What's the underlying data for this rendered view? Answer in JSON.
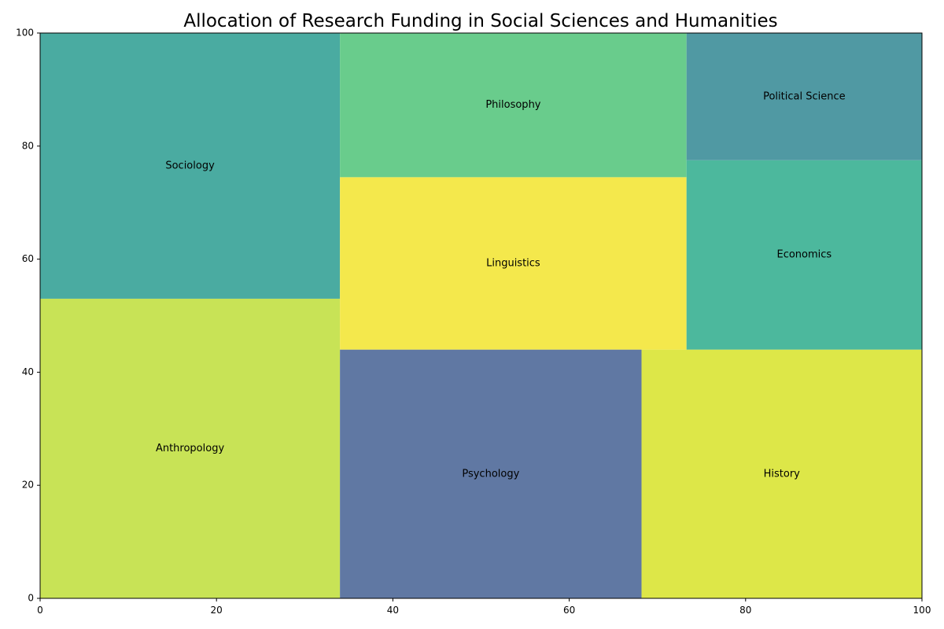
{
  "chart_data": {
    "type": "treemap",
    "title": "Allocation of Research Funding in Social Sciences and Humanities",
    "xlim": [
      0,
      100
    ],
    "ylim": [
      0,
      100
    ],
    "xticks": [
      0,
      20,
      40,
      60,
      80,
      100
    ],
    "yticks": [
      0,
      20,
      40,
      60,
      80,
      100
    ],
    "grid": false,
    "rects": [
      {
        "label": "Anthropology",
        "x": 0,
        "y": 0,
        "w": 34,
        "h": 53,
        "color": "#c8e356"
      },
      {
        "label": "Sociology",
        "x": 0,
        "y": 53,
        "w": 34,
        "h": 47,
        "color": "#4aaba1"
      },
      {
        "label": "Psychology",
        "x": 34,
        "y": 0,
        "w": 34.2,
        "h": 44,
        "color": "#6078a3"
      },
      {
        "label": "History",
        "x": 68.2,
        "y": 0,
        "w": 31.8,
        "h": 44,
        "color": "#dde748"
      },
      {
        "label": "Linguistics",
        "x": 34,
        "y": 44,
        "w": 39.3,
        "h": 30.5,
        "color": "#f4e84c"
      },
      {
        "label": "Philosophy",
        "x": 34,
        "y": 74.5,
        "w": 39.3,
        "h": 25.5,
        "color": "#69cc8c"
      },
      {
        "label": "Economics",
        "x": 73.3,
        "y": 44,
        "w": 26.7,
        "h": 33.5,
        "color": "#4cb89d"
      },
      {
        "label": "Political Science",
        "x": 73.3,
        "y": 77.5,
        "w": 26.7,
        "h": 22.5,
        "color": "#5099a3"
      }
    ]
  }
}
